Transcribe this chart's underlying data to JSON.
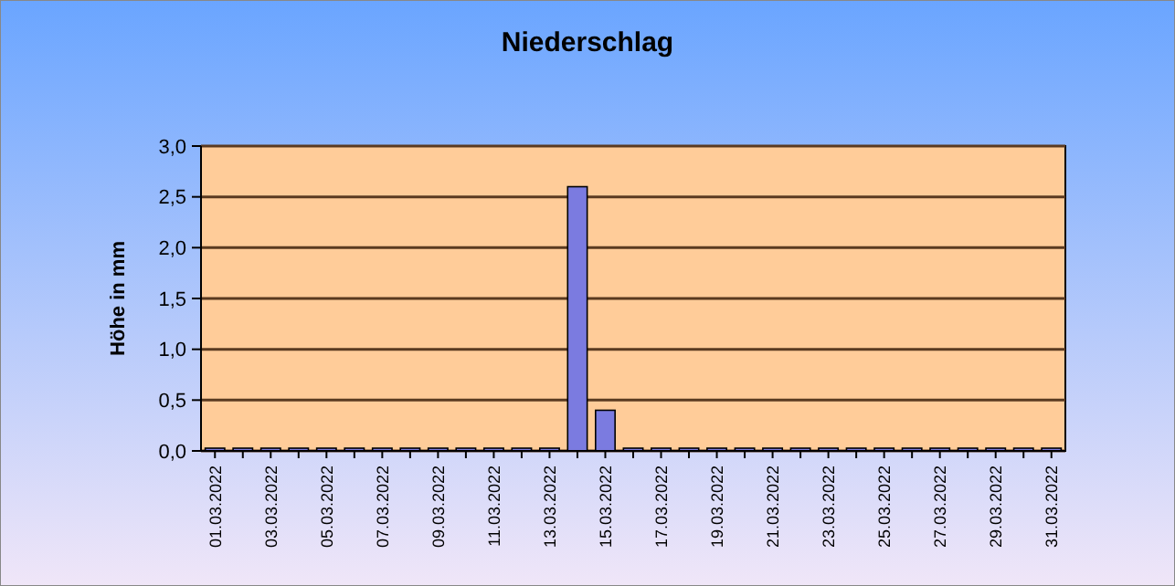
{
  "chart_data": {
    "type": "bar",
    "title": "Niederschlag",
    "ylabel": "Höhe in mm",
    "categories": [
      "01.03.2022",
      null,
      "03.03.2022",
      null,
      "05.03.2022",
      null,
      "07.03.2022",
      null,
      "09.03.2022",
      null,
      "11.03.2022",
      null,
      "13.03.2022",
      null,
      "15.03.2022",
      null,
      "17.03.2022",
      null,
      "19.03.2022",
      null,
      "21.03.2022",
      null,
      "23.03.2022",
      null,
      "25.03.2022",
      null,
      "27.03.2022",
      null,
      "29.03.2022",
      null,
      "31.03.2022"
    ],
    "values": [
      0,
      0,
      0,
      0,
      0,
      0,
      0,
      0,
      0,
      0,
      0,
      0,
      0,
      2.6,
      0.4,
      0,
      0,
      0,
      0,
      0,
      0,
      0,
      0,
      0,
      0,
      0,
      0,
      0,
      0,
      0,
      0
    ],
    "color": "#7b7be0",
    "ylim": [
      0,
      3
    ],
    "yticks": [
      {
        "value": 0,
        "label": "0,0"
      },
      {
        "value": 0.5,
        "label": "0,5"
      },
      {
        "value": 1,
        "label": "1,0"
      },
      {
        "value": 1.5,
        "label": "1,5"
      },
      {
        "value": 2,
        "label": "2,0"
      },
      {
        "value": 2.5,
        "label": "2,5"
      },
      {
        "value": 3,
        "label": "3,0"
      }
    ],
    "grid": "y"
  }
}
